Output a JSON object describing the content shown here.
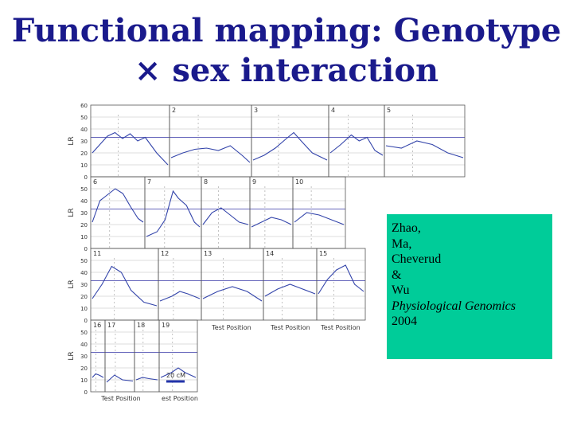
{
  "slide": {
    "title_line1": "Functional mapping: Genotype",
    "title_line2": "× sex interaction"
  },
  "figure": {
    "y_ticks": [
      "60",
      "50",
      "40",
      "30",
      "20",
      "10",
      "0"
    ],
    "y_label": "LR",
    "x_label": "Test Position",
    "x_label_partial": "est Position",
    "scale_label": "20 cM",
    "panel_numbers": [
      "2",
      "3",
      "4",
      "5",
      "6",
      "7",
      "8",
      "9",
      "10",
      "11",
      "12",
      "13",
      "14",
      "15",
      "16",
      "17",
      "18",
      "19"
    ],
    "colors": {
      "curve": "#3344aa",
      "threshold": "#6666bb",
      "grid": "#bbbbbb",
      "frame": "#555555"
    }
  },
  "citation": {
    "authors": [
      "Zhao,",
      "Ma,",
      "Cheverud",
      "&",
      "Wu"
    ],
    "journal": "Physiological Genomics",
    "year": "2004"
  }
}
